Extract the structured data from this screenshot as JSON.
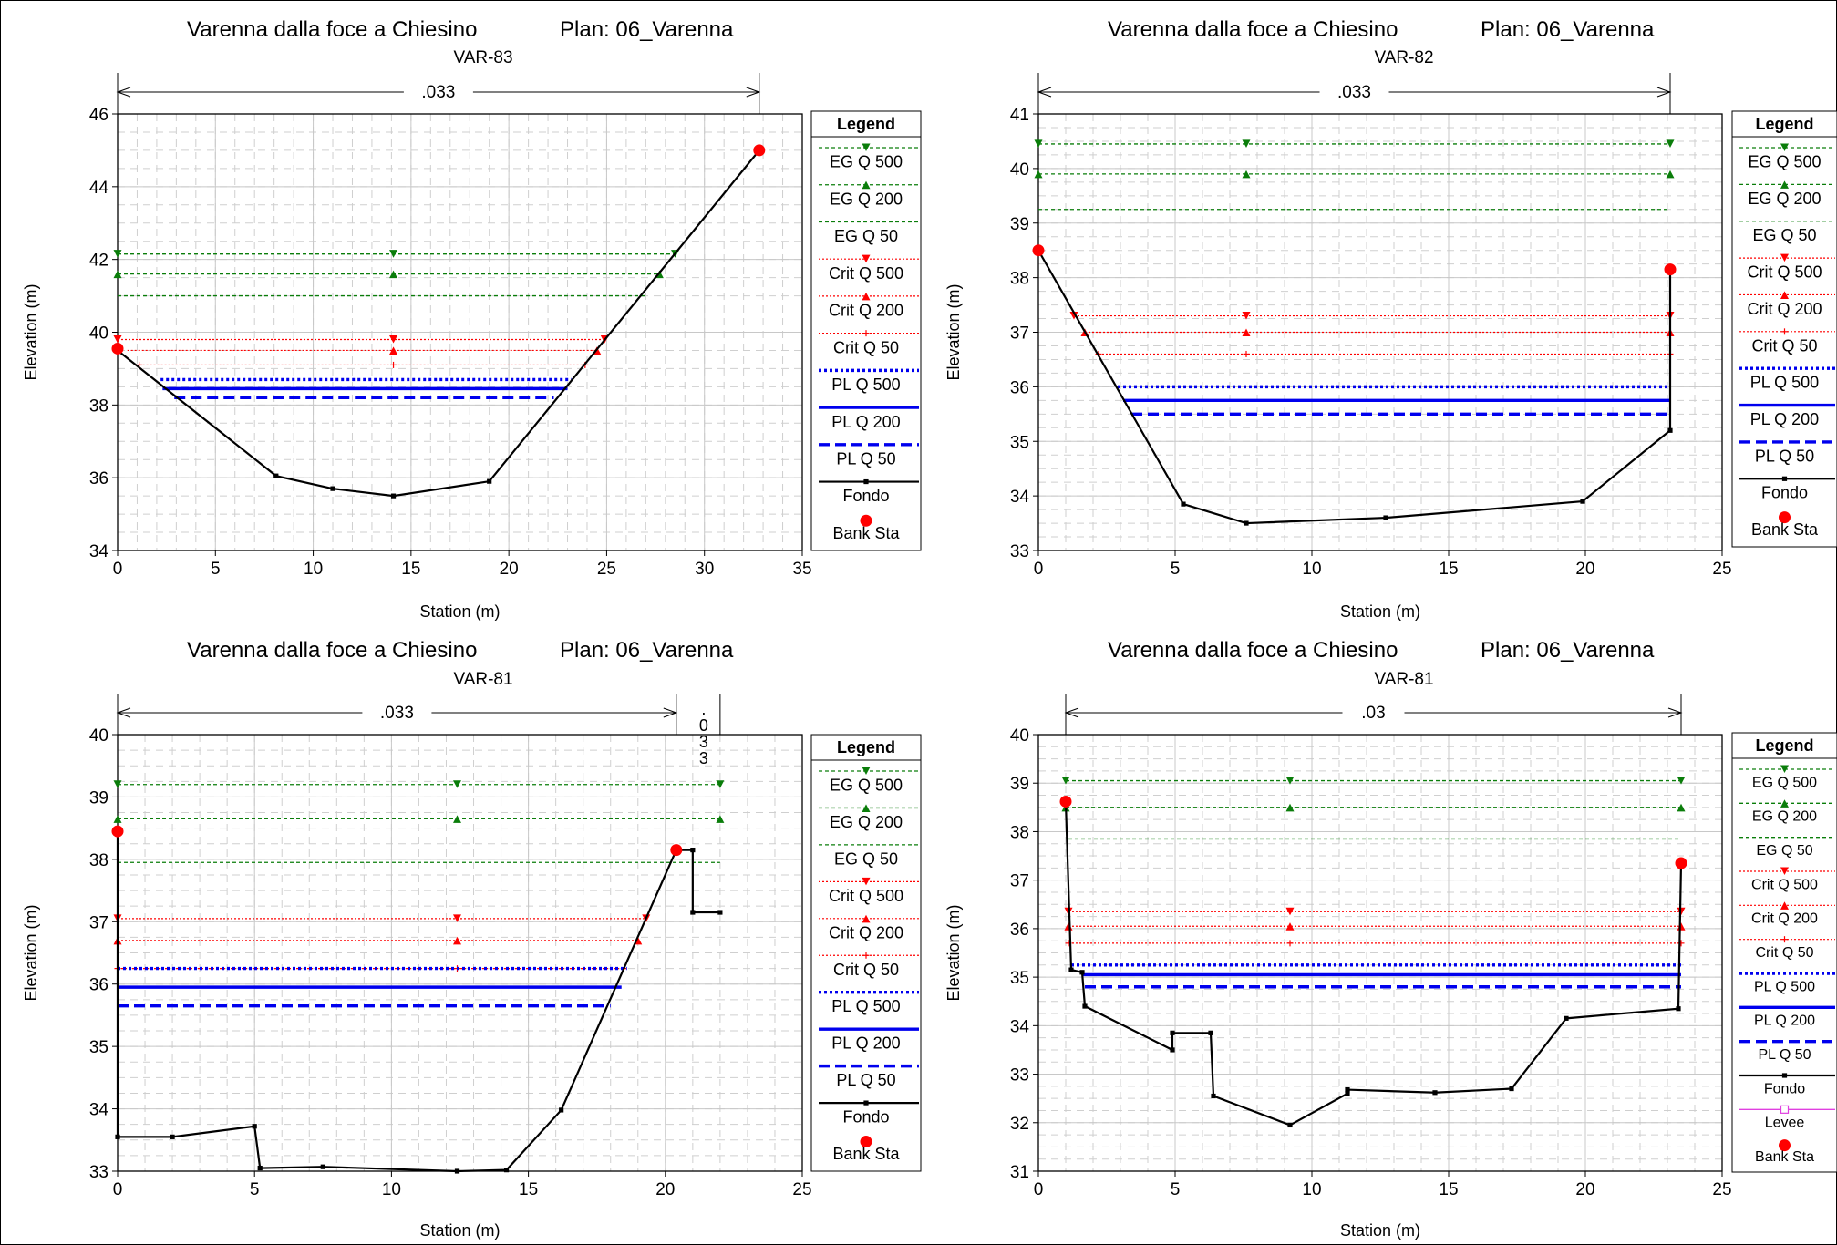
{
  "chart_data": [
    {
      "type": "line",
      "title": "Varenna dalla foce a Chiesino",
      "plan": "Plan: 06_Varenna",
      "subtitle": "VAR-83",
      "xlabel": "Station (m)",
      "ylabel": "Elevation (m)",
      "xlim": [
        0,
        35
      ],
      "ylim": [
        34,
        46
      ],
      "xticks": [
        0,
        5,
        10,
        15,
        20,
        25,
        30,
        35
      ],
      "yticks": [
        34,
        36,
        38,
        40,
        42,
        44,
        46
      ],
      "grid": true,
      "manning": [
        {
          "label": ".033",
          "x0": 0,
          "x1": 32.8
        }
      ],
      "water_levels": [
        {
          "name": "EG Q 500",
          "kind": "eg500",
          "y": 42.15,
          "x0": 0,
          "x1": 28.5,
          "markers": [
            0,
            14.1,
            28.5
          ]
        },
        {
          "name": "EG Q 200",
          "kind": "eg200",
          "y": 41.6,
          "x0": 0,
          "x1": 27.7,
          "markers": [
            0,
            14.1,
            27.7
          ]
        },
        {
          "name": "EG Q 50",
          "kind": "eg50",
          "y": 41.0,
          "x0": 0,
          "x1": 27.0,
          "markers": []
        },
        {
          "name": "Crit Q 500",
          "kind": "crit500",
          "y": 39.8,
          "x0": 0,
          "x1": 24.9,
          "markers": [
            0,
            14.1,
            24.9
          ]
        },
        {
          "name": "Crit Q 200",
          "kind": "crit200",
          "y": 39.5,
          "x0": 0.5,
          "x1": 24.5,
          "markers": [
            14.1,
            24.5
          ]
        },
        {
          "name": "Crit Q 50",
          "kind": "crit50",
          "y": 39.1,
          "x0": 1.1,
          "x1": 23.9,
          "markers": [
            1.1,
            14.1,
            23.9
          ]
        },
        {
          "name": "PL Q 500",
          "kind": "pl500",
          "y": 38.7,
          "x0": 2.2,
          "x1": 23.2,
          "markers": []
        },
        {
          "name": "PL Q 200",
          "kind": "pl200",
          "y": 38.45,
          "x0": 2.3,
          "x1": 23.0,
          "markers": []
        },
        {
          "name": "PL Q 50",
          "kind": "pl50",
          "y": 38.2,
          "x0": 2.9,
          "x1": 22.3,
          "markers": []
        }
      ],
      "ground": {
        "name": "Fondo",
        "x": [
          0,
          8.1,
          11,
          14.1,
          19,
          32.8
        ],
        "y": [
          39.5,
          36.05,
          35.7,
          35.5,
          35.9,
          45.0
        ]
      },
      "bank_sta": {
        "name": "Bank Sta",
        "x": [
          0,
          32.8
        ],
        "y": [
          39.55,
          45.0
        ]
      },
      "legend_title": "Legend",
      "legend": [
        "EG Q 500",
        "EG Q 200",
        "EG Q 50",
        "Crit Q 500",
        "Crit Q 200",
        "Crit Q 50",
        "PL Q 500",
        "PL Q 200",
        "PL Q 50",
        "Fondo",
        "Bank Sta"
      ]
    },
    {
      "type": "line",
      "title": "Varenna dalla foce a Chiesino",
      "plan": "Plan: 06_Varenna",
      "subtitle": "VAR-82",
      "xlabel": "Station (m)",
      "ylabel": "Elevation (m)",
      "xlim": [
        0,
        25
      ],
      "ylim": [
        33,
        41
      ],
      "xticks": [
        0,
        5,
        10,
        15,
        20,
        25
      ],
      "yticks": [
        33,
        34,
        35,
        36,
        37,
        38,
        39,
        40,
        41
      ],
      "grid": true,
      "manning": [
        {
          "label": ".033",
          "x0": 0,
          "x1": 23.1
        }
      ],
      "water_levels": [
        {
          "name": "EG Q 500",
          "kind": "eg500",
          "y": 40.45,
          "x0": 0,
          "x1": 23.1,
          "markers": [
            0,
            7.6,
            23.1
          ]
        },
        {
          "name": "EG Q 200",
          "kind": "eg200",
          "y": 39.9,
          "x0": 0,
          "x1": 23.1,
          "markers": [
            0,
            7.6,
            23.1
          ]
        },
        {
          "name": "EG Q 50",
          "kind": "eg50",
          "y": 39.25,
          "x0": 0,
          "x1": 23.1,
          "markers": []
        },
        {
          "name": "Crit Q 500",
          "kind": "crit500",
          "y": 37.3,
          "x0": 1.3,
          "x1": 23.1,
          "markers": [
            1.3,
            7.6,
            23.1
          ]
        },
        {
          "name": "Crit Q 200",
          "kind": "crit200",
          "y": 37.0,
          "x0": 1.7,
          "x1": 23.1,
          "markers": [
            1.7,
            7.6,
            23.1
          ]
        },
        {
          "name": "Crit Q 50",
          "kind": "crit50",
          "y": 36.6,
          "x0": 2.2,
          "x1": 23.1,
          "markers": [
            2.2,
            7.6,
            23.1
          ]
        },
        {
          "name": "PL Q 500",
          "kind": "pl500",
          "y": 36.0,
          "x0": 2.9,
          "x1": 23.1,
          "markers": []
        },
        {
          "name": "PL Q 200",
          "kind": "pl200",
          "y": 35.75,
          "x0": 3.1,
          "x1": 23.1,
          "markers": []
        },
        {
          "name": "PL Q 50",
          "kind": "pl50",
          "y": 35.5,
          "x0": 3.4,
          "x1": 23.1,
          "markers": []
        }
      ],
      "ground": {
        "name": "Fondo",
        "x": [
          0,
          5.3,
          7.6,
          12.7,
          19.9,
          23.1,
          23.1
        ],
        "y": [
          38.5,
          33.85,
          33.5,
          33.6,
          33.9,
          35.2,
          38.15
        ]
      },
      "bank_sta": {
        "name": "Bank Sta",
        "x": [
          0,
          23.1
        ],
        "y": [
          38.5,
          38.15
        ]
      },
      "legend_title": "Legend",
      "legend": [
        "EG Q 500",
        "EG Q 200",
        "EG Q 50",
        "Crit Q 500",
        "Crit Q 200",
        "Crit Q 50",
        "PL Q 500",
        "PL Q 200",
        "PL Q 50",
        "Fondo",
        "Bank Sta"
      ]
    },
    {
      "type": "line",
      "title": "Varenna dalla foce a Chiesino",
      "plan": "Plan: 06_Varenna",
      "subtitle": "VAR-81",
      "xlabel": "Station (m)",
      "ylabel": "Elevation (m)",
      "xlim": [
        0,
        25
      ],
      "ylim": [
        33,
        40
      ],
      "xticks": [
        0,
        5,
        10,
        15,
        20,
        25
      ],
      "yticks": [
        33,
        34,
        35,
        36,
        37,
        38,
        39,
        40
      ],
      "grid": true,
      "manning": [
        {
          "label": ".033",
          "x0": 0,
          "x1": 20.4
        },
        {
          "label": ".033",
          "x0": 20.4,
          "x1": 22,
          "vertical": true
        }
      ],
      "water_levels": [
        {
          "name": "EG Q 500",
          "kind": "eg500",
          "y": 39.2,
          "x0": 0,
          "x1": 22,
          "markers": [
            0,
            12.4,
            22
          ]
        },
        {
          "name": "EG Q 200",
          "kind": "eg200",
          "y": 38.65,
          "x0": 0,
          "x1": 22,
          "markers": [
            0,
            12.4,
            22
          ]
        },
        {
          "name": "EG Q 50",
          "kind": "eg50",
          "y": 37.95,
          "x0": 0,
          "x1": 22,
          "markers": []
        },
        {
          "name": "Crit Q 500",
          "kind": "crit500",
          "y": 37.05,
          "x0": 0,
          "x1": 19.3,
          "markers": [
            0,
            12.4,
            19.3
          ]
        },
        {
          "name": "Crit Q 200",
          "kind": "crit200",
          "y": 36.7,
          "x0": 0,
          "x1": 19.0,
          "markers": [
            0,
            12.4,
            19.0
          ]
        },
        {
          "name": "Crit Q 50",
          "kind": "crit50",
          "y": 36.25,
          "x0": 0,
          "x1": 18.6,
          "markers": [
            0,
            12.4
          ]
        },
        {
          "name": "PL Q 500",
          "kind": "pl500",
          "y": 36.25,
          "x0": 0,
          "x1": 18.6,
          "markers": []
        },
        {
          "name": "PL Q 200",
          "kind": "pl200",
          "y": 35.95,
          "x0": 0,
          "x1": 18.4,
          "markers": []
        },
        {
          "name": "PL Q 50",
          "kind": "pl50",
          "y": 35.65,
          "x0": 0,
          "x1": 18.0,
          "markers": []
        }
      ],
      "ground": {
        "name": "Fondo",
        "x": [
          0,
          0,
          2,
          5,
          5.2,
          7.5,
          12.4,
          14.2,
          16.2,
          20.4,
          21,
          21,
          22
        ],
        "y": [
          38.45,
          33.55,
          33.55,
          33.72,
          33.05,
          33.07,
          33.0,
          33.02,
          33.98,
          38.15,
          38.15,
          37.15,
          37.15
        ]
      },
      "bank_sta": {
        "name": "Bank Sta",
        "x": [
          0,
          20.4
        ],
        "y": [
          38.45,
          38.15
        ]
      },
      "legend_title": "Legend",
      "legend": [
        "EG Q 500",
        "EG Q 200",
        "EG Q 50",
        "Crit Q 500",
        "Crit Q 200",
        "Crit Q 50",
        "PL Q 500",
        "PL Q 200",
        "PL Q 50",
        "Fondo",
        "Bank Sta"
      ]
    },
    {
      "type": "line",
      "title": "Varenna dalla foce a Chiesino",
      "plan": "Plan: 06_Varenna",
      "subtitle": "VAR-81",
      "xlabel": "Station (m)",
      "ylabel": "Elevation (m)",
      "xlim": [
        0,
        25
      ],
      "ylim": [
        31,
        40
      ],
      "xticks": [
        0,
        5,
        10,
        15,
        20,
        25
      ],
      "yticks": [
        31,
        32,
        33,
        34,
        35,
        36,
        37,
        38,
        39,
        40
      ],
      "grid": true,
      "manning": [
        {
          "label": ".03",
          "x0": 1.0,
          "x1": 23.5
        }
      ],
      "water_levels": [
        {
          "name": "EG Q 500",
          "kind": "eg500",
          "y": 39.05,
          "x0": 1.0,
          "x1": 23.5,
          "markers": [
            1.0,
            9.2,
            23.5
          ]
        },
        {
          "name": "EG Q 200",
          "kind": "eg200",
          "y": 38.5,
          "x0": 1.0,
          "x1": 23.5,
          "markers": [
            1.0,
            9.2,
            23.5
          ]
        },
        {
          "name": "EG Q 50",
          "kind": "eg50",
          "y": 37.85,
          "x0": 1.1,
          "x1": 23.5,
          "markers": []
        },
        {
          "name": "Crit Q 500",
          "kind": "crit500",
          "y": 36.35,
          "x0": 1.1,
          "x1": 23.5,
          "markers": [
            1.1,
            9.2,
            23.5
          ]
        },
        {
          "name": "Crit Q 200",
          "kind": "crit200",
          "y": 36.05,
          "x0": 1.1,
          "x1": 23.5,
          "markers": [
            1.1,
            9.2,
            23.5
          ]
        },
        {
          "name": "Crit Q 50",
          "kind": "crit50",
          "y": 35.7,
          "x0": 1.1,
          "x1": 23.5,
          "markers": [
            1.1,
            9.2,
            23.5
          ]
        },
        {
          "name": "PL Q 500",
          "kind": "pl500",
          "y": 35.25,
          "x0": 1.2,
          "x1": 23.5,
          "markers": []
        },
        {
          "name": "PL Q 200",
          "kind": "pl200",
          "y": 35.05,
          "x0": 1.6,
          "x1": 23.5,
          "markers": []
        },
        {
          "name": "PL Q 50",
          "kind": "pl50",
          "y": 34.8,
          "x0": 1.7,
          "x1": 23.5,
          "markers": []
        }
      ],
      "ground": {
        "name": "Fondo",
        "x": [
          1.0,
          1.2,
          1.6,
          1.7,
          4.9,
          4.9,
          6.3,
          6.4,
          9.2,
          11.3,
          11.3,
          14.5,
          17.3,
          19.3,
          23.4,
          23.5
        ],
        "y": [
          38.6,
          35.15,
          35.1,
          34.4,
          33.5,
          33.85,
          33.85,
          32.55,
          31.95,
          32.6,
          32.68,
          32.62,
          32.7,
          34.15,
          34.35,
          37.35
        ]
      },
      "bank_sta": {
        "name": "Bank Sta",
        "x": [
          1.0,
          23.5
        ],
        "y": [
          38.62,
          37.35
        ]
      },
      "legend_title": "Legend",
      "legend": [
        "EG Q 500",
        "EG Q 200",
        "EG Q 50",
        "Crit Q 500",
        "Crit Q 200",
        "Crit Q 50",
        "PL Q 500",
        "PL Q 200",
        "PL Q 50",
        "Fondo",
        "Levee",
        "Bank Sta"
      ]
    }
  ]
}
